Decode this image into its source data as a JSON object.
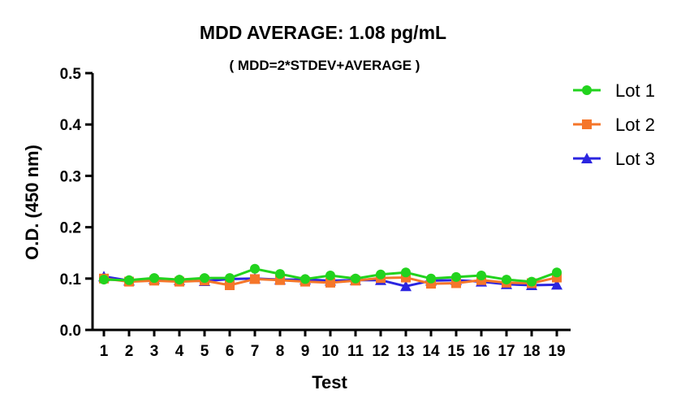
{
  "chart_data": {
    "type": "line",
    "title": "MDD AVERAGE:  1.08 pg/mL",
    "subtitle": "( MDD=2*STDEV+AVERAGE )",
    "xlabel": "Test",
    "ylabel": "O.D. (450 nm)",
    "x": [
      1,
      2,
      3,
      4,
      5,
      6,
      7,
      8,
      9,
      10,
      11,
      12,
      13,
      14,
      15,
      16,
      17,
      18,
      19
    ],
    "x_tick_labels": [
      "1",
      "2",
      "3",
      "4",
      "5",
      "6",
      "7",
      "8",
      "9",
      "10",
      "11",
      "12",
      "13",
      "14",
      "15",
      "16",
      "17",
      "18",
      "19"
    ],
    "ylim": [
      0,
      0.5
    ],
    "y_ticks": [
      0.0,
      0.1,
      0.2,
      0.3,
      0.4,
      0.5
    ],
    "y_tick_labels": [
      "0.0",
      "0.1",
      "0.2",
      "0.3",
      "0.4",
      "0.5"
    ],
    "grid": false,
    "legend_position": "top-right",
    "series": [
      {
        "name": "Lot 1",
        "color": "#22d31e",
        "marker": "circle",
        "values": [
          0.098,
          0.097,
          0.101,
          0.098,
          0.101,
          0.101,
          0.119,
          0.109,
          0.099,
          0.106,
          0.1,
          0.108,
          0.112,
          0.1,
          0.103,
          0.106,
          0.098,
          0.094,
          0.112
        ]
      },
      {
        "name": "Lot 2",
        "color": "#f5762a",
        "marker": "square",
        "values": [
          0.1,
          0.094,
          0.096,
          0.094,
          0.096,
          0.087,
          0.099,
          0.097,
          0.094,
          0.092,
          0.096,
          0.101,
          0.102,
          0.09,
          0.091,
          0.097,
          0.092,
          0.091,
          0.102
        ]
      },
      {
        "name": "Lot 3",
        "color": "#2b25e0",
        "marker": "triangle",
        "values": [
          0.104,
          0.096,
          0.099,
          0.097,
          0.095,
          0.099,
          0.1,
          0.098,
          0.098,
          0.096,
          0.097,
          0.097,
          0.085,
          0.096,
          0.097,
          0.094,
          0.089,
          0.087,
          0.088
        ]
      }
    ]
  }
}
